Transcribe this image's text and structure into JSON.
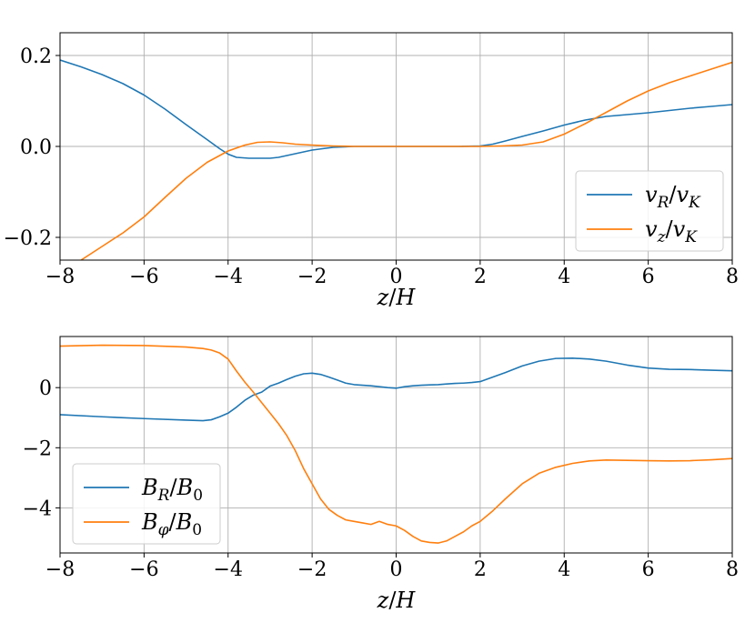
{
  "chart_data": [
    {
      "type": "line",
      "xlabel": "z/H",
      "ylabel": "",
      "xlim": [
        -8,
        8
      ],
      "ylim": [
        -0.25,
        0.25
      ],
      "xticks": [
        -8,
        -6,
        -4,
        -2,
        0,
        2,
        4,
        6,
        8
      ],
      "xtick_labels": [
        "−8",
        "−6",
        "−4",
        "−2",
        "0",
        "2",
        "4",
        "6",
        "8"
      ],
      "yticks": [
        -0.2,
        0.0,
        0.2
      ],
      "ytick_labels": [
        "−0.2",
        "0.0",
        "0.2"
      ],
      "grid": true,
      "legend_position": "lower-right",
      "series": [
        {
          "name": "v_R/v_K",
          "color": "#1f77b4",
          "x": [
            -8,
            -7.5,
            -7,
            -6.5,
            -6,
            -5.5,
            -5,
            -4.5,
            -4.2,
            -4,
            -3.8,
            -3.5,
            -3,
            -2.8,
            -2.5,
            -2,
            -1.5,
            -1,
            0,
            1,
            1.5,
            2,
            2.3,
            2.6,
            3,
            3.5,
            4,
            4.5,
            5,
            5.5,
            6,
            6.5,
            7,
            7.5,
            8
          ],
          "y": [
            0.19,
            0.175,
            0.158,
            0.138,
            0.113,
            0.082,
            0.048,
            0.015,
            -0.005,
            -0.017,
            -0.024,
            -0.026,
            -0.026,
            -0.024,
            -0.018,
            -0.008,
            -0.002,
            0.0,
            0.0,
            0.0,
            0.0,
            0.001,
            0.005,
            0.012,
            0.022,
            0.034,
            0.047,
            0.058,
            0.066,
            0.07,
            0.074,
            0.079,
            0.084,
            0.088,
            0.092
          ]
        },
        {
          "name": "v_z/v_K",
          "color": "#ff7f0e",
          "x": [
            -7.5,
            -7,
            -6.5,
            -6,
            -5.5,
            -5,
            -4.5,
            -4,
            -3.6,
            -3.3,
            -3,
            -2.7,
            -2.4,
            -2,
            -1.5,
            -1,
            0,
            1,
            2,
            2.5,
            3,
            3.5,
            4,
            4.5,
            5,
            5.5,
            6,
            6.5,
            7,
            7.5,
            8
          ],
          "y": [
            -0.25,
            -0.22,
            -0.19,
            -0.155,
            -0.112,
            -0.07,
            -0.035,
            -0.01,
            0.003,
            0.009,
            0.01,
            0.008,
            0.005,
            0.003,
            0.001,
            0.0,
            0.0,
            0.0,
            0.0,
            0.001,
            0.003,
            0.01,
            0.027,
            0.05,
            0.075,
            0.1,
            0.122,
            0.14,
            0.155,
            0.17,
            0.185
          ]
        }
      ]
    },
    {
      "type": "line",
      "xlabel": "z/H",
      "ylabel": "",
      "xlim": [
        -8,
        8
      ],
      "ylim": [
        -5.5,
        1.7
      ],
      "xticks": [
        -8,
        -6,
        -4,
        -2,
        0,
        2,
        4,
        6,
        8
      ],
      "xtick_labels": [
        "−8",
        "−6",
        "−4",
        "−2",
        "0",
        "2",
        "4",
        "6",
        "8"
      ],
      "yticks": [
        -4,
        -2,
        0
      ],
      "ytick_labels": [
        "−4",
        "−2",
        "0"
      ],
      "grid": true,
      "legend_position": "lower-left",
      "series": [
        {
          "name": "B_R/B_0",
          "color": "#1f77b4",
          "x": [
            -8,
            -7,
            -6,
            -5,
            -4.6,
            -4.4,
            -4.2,
            -4,
            -3.8,
            -3.6,
            -3.4,
            -3.2,
            -3,
            -2.8,
            -2.6,
            -2.4,
            -2.2,
            -2,
            -1.8,
            -1.6,
            -1.4,
            -1.2,
            -1,
            -0.8,
            -0.6,
            -0.4,
            -0.2,
            0,
            0.2,
            0.4,
            0.6,
            0.8,
            1,
            1.2,
            1.4,
            1.6,
            1.8,
            2,
            2.3,
            2.6,
            3,
            3.4,
            3.8,
            4.2,
            4.6,
            5,
            5.5,
            6,
            6.5,
            7,
            7.5,
            8
          ],
          "y": [
            -0.9,
            -0.97,
            -1.03,
            -1.08,
            -1.1,
            -1.07,
            -0.97,
            -0.85,
            -0.65,
            -0.42,
            -0.25,
            -0.15,
            0.05,
            0.15,
            0.27,
            0.38,
            0.46,
            0.48,
            0.44,
            0.35,
            0.25,
            0.15,
            0.1,
            0.08,
            0.06,
            0.03,
            0.0,
            -0.02,
            0.03,
            0.06,
            0.08,
            0.09,
            0.1,
            0.12,
            0.14,
            0.15,
            0.17,
            0.2,
            0.35,
            0.5,
            0.72,
            0.88,
            0.97,
            0.98,
            0.95,
            0.88,
            0.75,
            0.65,
            0.61,
            0.6,
            0.58,
            0.56
          ]
        },
        {
          "name": "B_φ/B_0",
          "color": "#ff7f0e",
          "x": [
            -8,
            -7,
            -6,
            -5,
            -4.6,
            -4.4,
            -4.2,
            -4,
            -3.8,
            -3.6,
            -3.4,
            -3.2,
            -3,
            -2.8,
            -2.6,
            -2.4,
            -2.2,
            -2,
            -1.8,
            -1.6,
            -1.4,
            -1.2,
            -1,
            -0.8,
            -0.6,
            -0.4,
            -0.2,
            0,
            0.2,
            0.4,
            0.6,
            0.8,
            1,
            1.2,
            1.4,
            1.6,
            1.8,
            2,
            2.3,
            2.6,
            3,
            3.4,
            3.8,
            4.2,
            4.6,
            5,
            5.5,
            6,
            6.5,
            7,
            7.5,
            8
          ],
          "y": [
            1.38,
            1.41,
            1.4,
            1.35,
            1.3,
            1.25,
            1.15,
            0.95,
            0.55,
            0.18,
            -0.15,
            -0.5,
            -0.85,
            -1.2,
            -1.6,
            -2.1,
            -2.7,
            -3.2,
            -3.7,
            -4.05,
            -4.25,
            -4.4,
            -4.45,
            -4.5,
            -4.55,
            -4.45,
            -4.55,
            -4.6,
            -4.75,
            -4.95,
            -5.1,
            -5.15,
            -5.17,
            -5.1,
            -4.95,
            -4.8,
            -4.6,
            -4.45,
            -4.1,
            -3.7,
            -3.2,
            -2.85,
            -2.65,
            -2.52,
            -2.44,
            -2.41,
            -2.42,
            -2.43,
            -2.44,
            -2.43,
            -2.4,
            -2.36
          ]
        }
      ]
    }
  ]
}
